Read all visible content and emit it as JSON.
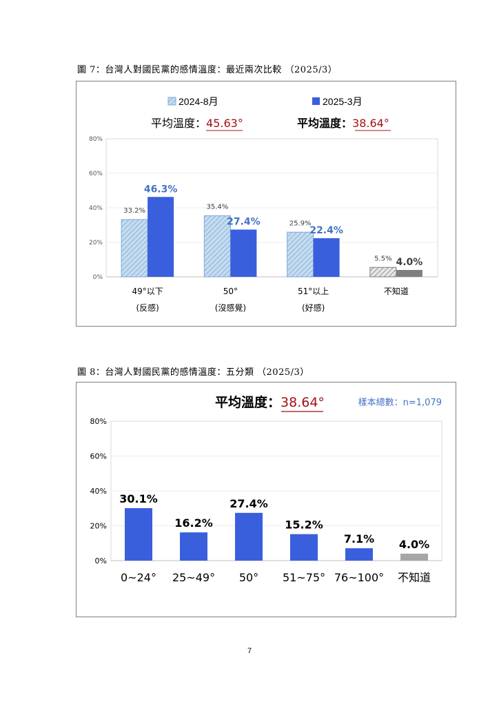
{
  "figures": {
    "fig7_title": "圖 7：台灣人對國民黨的感情溫度：最近兩次比較 （2025/3）",
    "fig8_title": "圖 8：台灣人對國民黨的感情溫度：五分類 （2025/3）"
  },
  "page_number": "7",
  "colors": {
    "blue": "#3a5fdd",
    "blue_label": "#4472c4",
    "hatch_fill": "#c5dcf0",
    "hatch_line": "#7ea7d6",
    "gray_hatch": "#bfbfbf",
    "gray": "#7f7f7f",
    "gray_bar": "#a6a6a6",
    "dark_red": "#a50f15",
    "grid": "#d9d9d9"
  },
  "chart_data": [
    {
      "type": "bar",
      "title": "",
      "legend": [
        {
          "name": "2024-8月",
          "style": "hatched"
        },
        {
          "name": "2025-3月",
          "style": "solid"
        }
      ],
      "avg_labels": [
        {
          "prefix": "平均溫度：",
          "value": "45.63°",
          "bold": false
        },
        {
          "prefix": "平均溫度：",
          "value": "38.64°",
          "bold": true
        }
      ],
      "categories": [
        {
          "line1": "49°以下",
          "line2": "(反感)"
        },
        {
          "line1": "50°",
          "line2": "(沒感覺)"
        },
        {
          "line1": "51°以上",
          "line2": "(好感)"
        },
        {
          "line1": "不知道",
          "line2": ""
        }
      ],
      "series": [
        {
          "name": "2024-8月",
          "values": [
            33.2,
            35.4,
            25.9,
            5.5
          ],
          "labels": [
            "33.2%",
            "35.4%",
            "25.9%",
            "5.5%"
          ]
        },
        {
          "name": "2025-3月",
          "values": [
            46.3,
            27.4,
            22.4,
            4.0
          ],
          "labels": [
            "46.3%",
            "27.4%",
            "22.4%",
            "4.0%"
          ]
        }
      ],
      "yticks": [
        "0%",
        "20%",
        "40%",
        "60%",
        "80%"
      ],
      "ylim": [
        0,
        80
      ],
      "grid": true
    },
    {
      "type": "bar",
      "title": "",
      "avg_label": {
        "prefix": "平均溫度：",
        "value": "38.64°"
      },
      "sample_label": "樣本總數：n=1,079",
      "categories": [
        "0~24°",
        "25~49°",
        "50°",
        "51~75°",
        "76~100°",
        "不知道"
      ],
      "values": [
        30.1,
        16.2,
        27.4,
        15.2,
        7.1,
        4.0
      ],
      "labels": [
        "30.1%",
        "16.2%",
        "27.4%",
        "15.2%",
        "7.1%",
        "4.0%"
      ],
      "yticks": [
        "0%",
        "20%",
        "40%",
        "60%",
        "80%"
      ],
      "ylim": [
        0,
        80
      ],
      "grid": true
    }
  ]
}
